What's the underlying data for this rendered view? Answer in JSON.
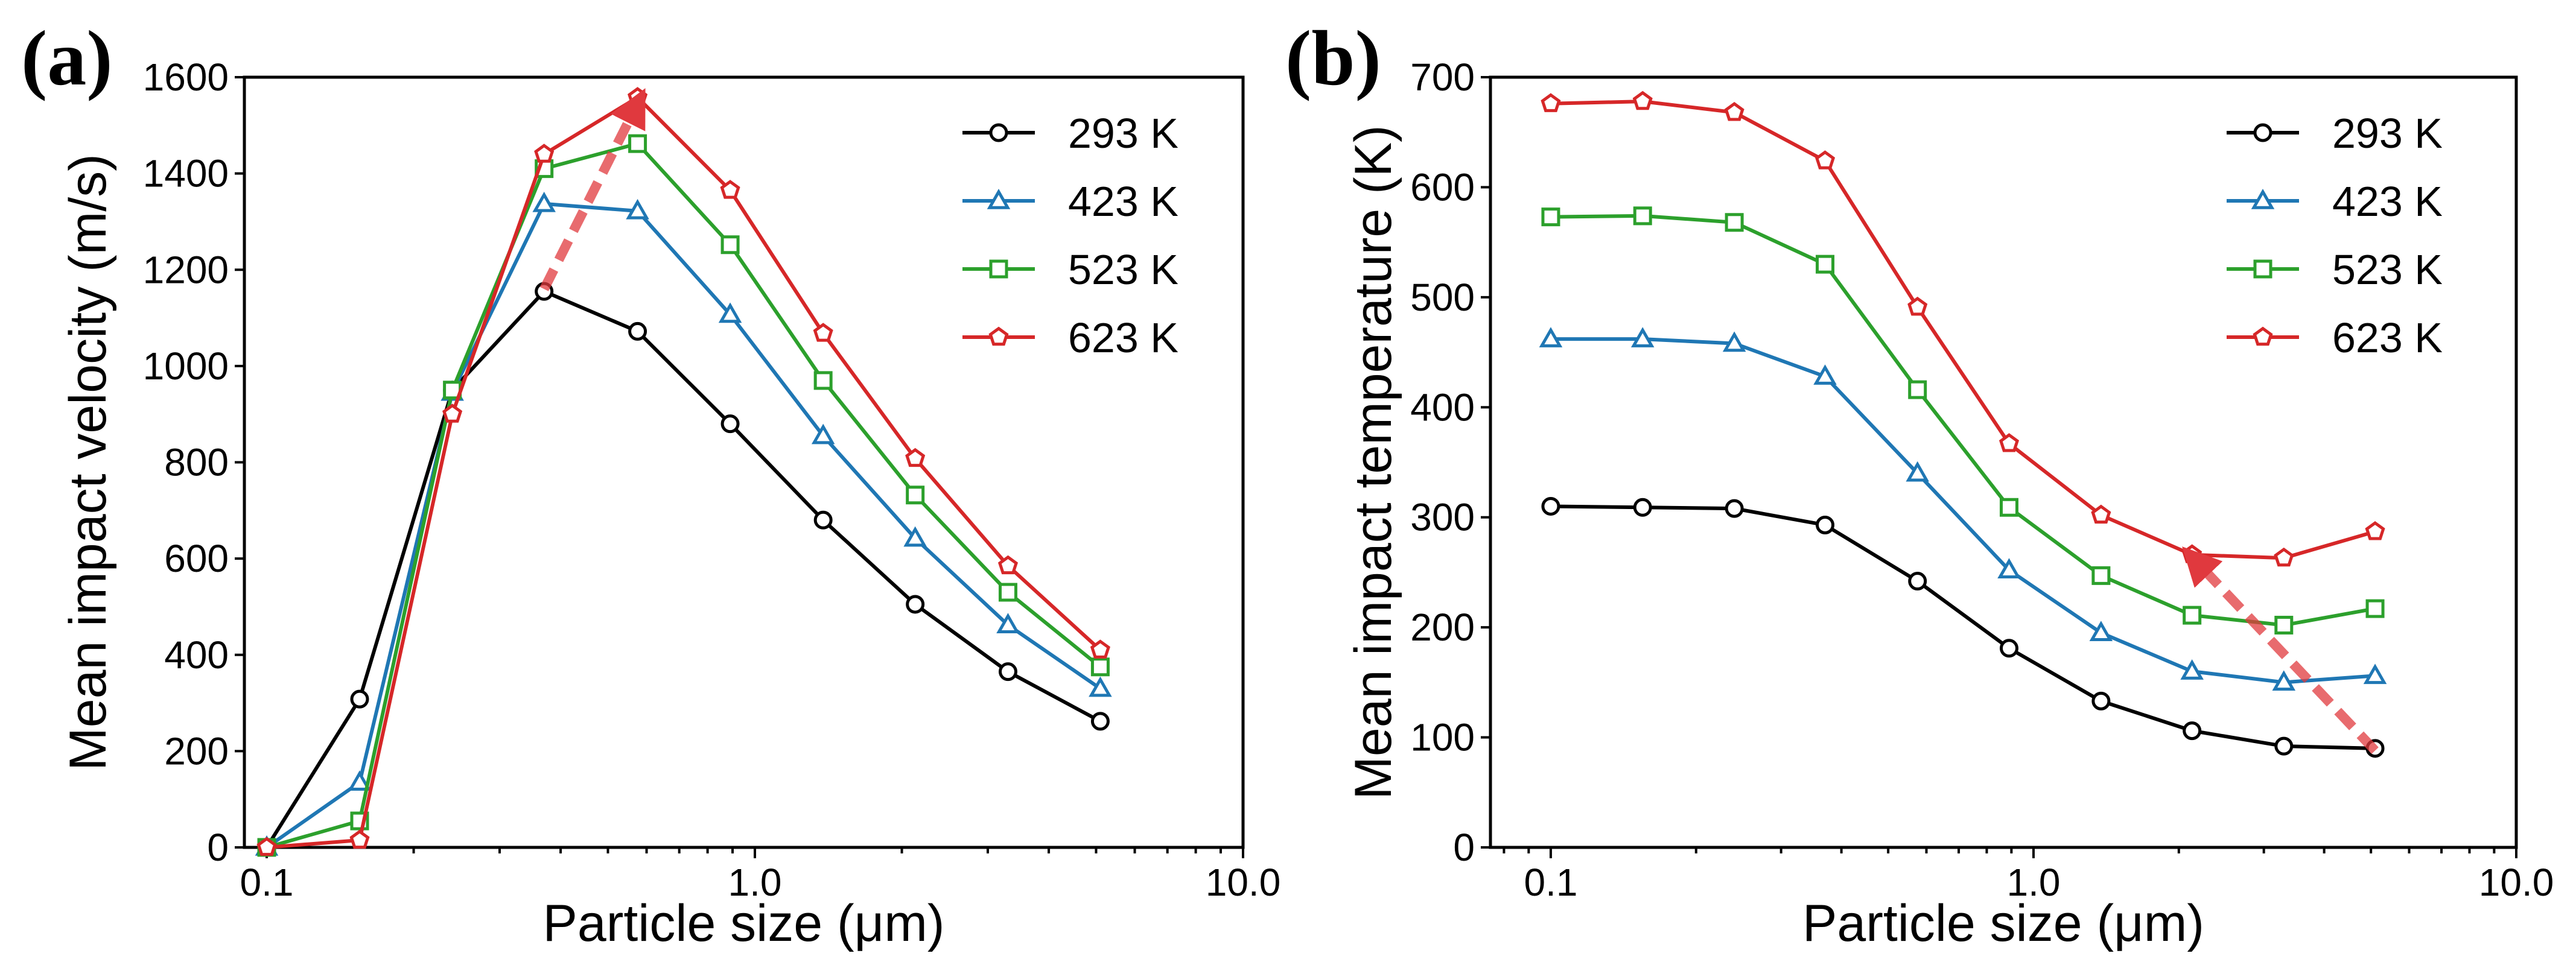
{
  "colors": {
    "293 K": "#000000",
    "423 K": "#1f77b4",
    "523 K": "#2ca02c",
    "623 K": "#d62728",
    "arrow": "#e0393e"
  },
  "chart_data": [
    {
      "panel": "(a)",
      "type": "line",
      "xscale": "log",
      "xlabel": "Particle size (μm)",
      "ylabel": "Mean impact velocity (m/s)",
      "xlim": [
        0.09,
        10.0
      ],
      "ylim": [
        0,
        1600
      ],
      "xticks": [
        {
          "value": 0.1,
          "label": "0.1"
        },
        {
          "value": 1.0,
          "label": "1.0"
        },
        {
          "value": 10.0,
          "label": "10.0"
        }
      ],
      "yticks": [
        0,
        200,
        400,
        600,
        800,
        1000,
        1200,
        1400,
        1600
      ],
      "x": [
        0.1,
        0.155,
        0.24,
        0.37,
        0.575,
        0.89,
        1.38,
        2.13,
        3.3,
        5.1
      ],
      "series": [
        {
          "name": "293 K",
          "marker": "circle",
          "values": [
            0,
            308,
            950,
            1155,
            1072,
            880,
            680,
            505,
            365,
            262
          ]
        },
        {
          "name": "423 K",
          "marker": "triangle",
          "values": [
            0,
            135,
            945,
            1337,
            1322,
            1107,
            855,
            642,
            462,
            330
          ]
        },
        {
          "name": "523 K",
          "marker": "square",
          "values": [
            0,
            55,
            950,
            1410,
            1462,
            1252,
            970,
            732,
            530,
            375
          ]
        },
        {
          "name": "623 K",
          "marker": "pentagon",
          "values": [
            0,
            15,
            900,
            1440,
            1558,
            1365,
            1068,
            808,
            585,
            410
          ]
        }
      ],
      "legend": "top-right",
      "annotation": {
        "type": "arrow",
        "from": [
          0.37,
          1160
        ],
        "to": [
          0.575,
          1545
        ]
      }
    },
    {
      "panel": "(b)",
      "type": "line",
      "xscale": "log",
      "xlabel": "Particle size (μm)",
      "ylabel": "Mean impact temperature (K)",
      "xlim": [
        0.075,
        10.0
      ],
      "ylim": [
        0,
        700
      ],
      "xticks": [
        {
          "value": 0.1,
          "label": "0.1"
        },
        {
          "value": 1.0,
          "label": "1.0"
        },
        {
          "value": 10.0,
          "label": "10.0"
        }
      ],
      "yticks": [
        0,
        100,
        200,
        300,
        400,
        500,
        600,
        700
      ],
      "x": [
        0.1,
        0.155,
        0.24,
        0.37,
        0.575,
        0.89,
        1.38,
        2.13,
        3.3,
        5.1
      ],
      "series": [
        {
          "name": "293 K",
          "marker": "circle",
          "values": [
            310,
            309,
            308,
            293,
            242,
            181,
            133,
            106,
            92,
            90
          ]
        },
        {
          "name": "423 K",
          "marker": "triangle",
          "values": [
            462,
            462,
            458,
            428,
            340,
            252,
            195,
            160,
            150,
            156
          ]
        },
        {
          "name": "523 K",
          "marker": "square",
          "values": [
            573,
            574,
            568,
            530,
            416,
            309,
            247,
            211,
            202,
            217
          ]
        },
        {
          "name": "623 K",
          "marker": "pentagon",
          "values": [
            676,
            678,
            668,
            624,
            491,
            367,
            302,
            266,
            263,
            287
          ]
        }
      ],
      "legend": "top-right",
      "annotation": {
        "type": "arrow",
        "from": [
          5.1,
          88
        ],
        "to": [
          2.15,
          262
        ]
      }
    }
  ]
}
